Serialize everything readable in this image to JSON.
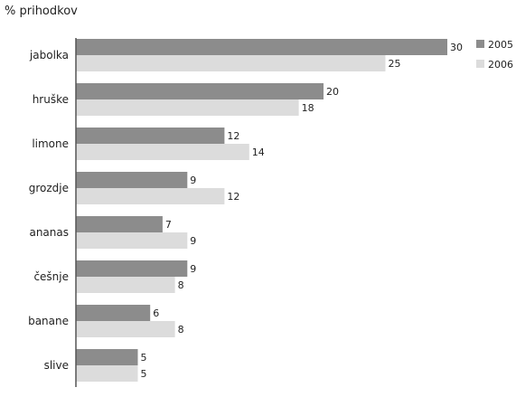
{
  "chart_data": {
    "type": "bar",
    "orientation": "horizontal",
    "title": "% prihodkov",
    "categories": [
      "jabolka",
      "hruške",
      "limone",
      "grozdje",
      "ananas",
      "češnje",
      "banane",
      "slive"
    ],
    "series": [
      {
        "name": "2005",
        "color": "#8c8c8c",
        "values": [
          30,
          20,
          12,
          9,
          7,
          9,
          6,
          5
        ]
      },
      {
        "name": "2006",
        "color": "#dcdcdc",
        "values": [
          25,
          18,
          14,
          12,
          9,
          8,
          8,
          5
        ]
      }
    ],
    "xlim": [
      0,
      30
    ],
    "grid": false,
    "legend_position": "top-right",
    "data_labels": true
  }
}
